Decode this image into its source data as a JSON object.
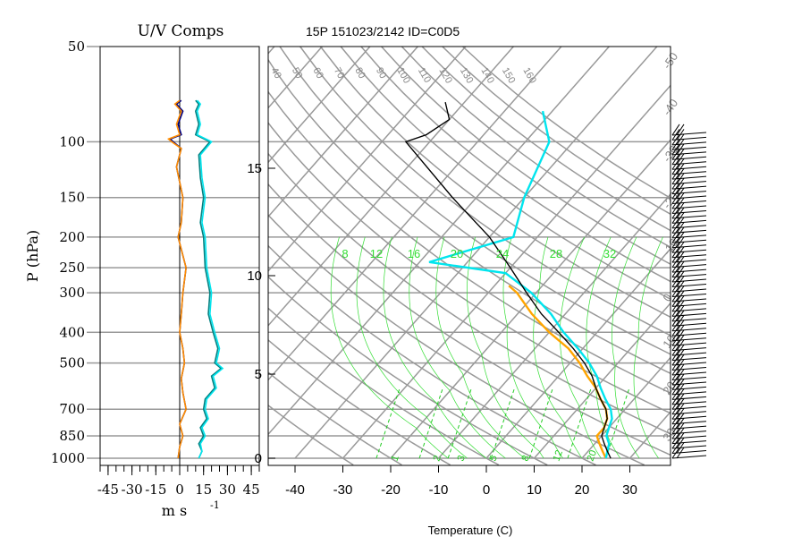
{
  "chart_data": [
    {
      "type": "line",
      "panel": "uv-components",
      "title": "U/V Comps",
      "xlabel": "m s",
      "xlabel_superscript": "-1",
      "ylabel": "P (hPa)",
      "xlim": [
        -50,
        50
      ],
      "ylim": [
        1000,
        50
      ],
      "y_scale": "log",
      "x_ticks": [
        "-45",
        "-30",
        "-15",
        "0",
        "15",
        "30",
        "45"
      ],
      "y_ticks": [
        50,
        100,
        150,
        200,
        250,
        300,
        400,
        500,
        700,
        850,
        1000
      ],
      "grid": true,
      "legend": "none",
      "zero_line": 0,
      "series": [
        {
          "color": "#000080",
          "values": [
            [
              -3,
              50
            ],
            [
              -1,
              1000
            ],
            [
              0,
              920
            ],
            [
              2,
              850
            ],
            [
              0,
              780
            ],
            [
              4,
              700
            ],
            [
              2,
              620
            ],
            [
              1,
              560
            ],
            [
              3,
              500
            ],
            [
              2,
              450
            ],
            [
              0,
              400
            ],
            [
              1,
              350
            ],
            [
              2,
              300
            ],
            [
              4,
              250
            ],
            [
              -1,
              200
            ],
            [
              1,
              180
            ],
            [
              2,
              150
            ],
            [
              -2,
              120
            ],
            [
              1,
              105
            ],
            [
              -4,
              100
            ],
            [
              -6,
              98
            ],
            [
              1,
              95
            ],
            [
              -1,
              88
            ],
            [
              2,
              80
            ],
            [
              -2,
              76
            ],
            [
              1,
              74
            ]
          ]
        },
        {
          "color": "#ff8c00",
          "values": [
            [
              -3,
              50
            ],
            [
              -1,
              1000
            ],
            [
              0,
              920
            ],
            [
              2,
              850
            ],
            [
              0,
              780
            ],
            [
              4,
              700
            ],
            [
              2,
              620
            ],
            [
              1,
              560
            ],
            [
              3,
              500
            ],
            [
              2,
              450
            ],
            [
              0,
              400
            ],
            [
              1,
              350
            ],
            [
              2,
              300
            ],
            [
              4,
              250
            ],
            [
              -1,
              200
            ],
            [
              1,
              180
            ],
            [
              2,
              150
            ],
            [
              -2,
              120
            ],
            [
              1,
              105
            ],
            [
              -5,
              100
            ],
            [
              -7,
              98
            ],
            [
              0,
              95
            ],
            [
              -2,
              88
            ],
            [
              1,
              80
            ],
            [
              -3,
              76
            ],
            [
              0,
              74
            ]
          ]
        },
        {
          "color": "#008080",
          "values": [
            [
              12,
              1000
            ],
            [
              14,
              950
            ],
            [
              12,
              900
            ],
            [
              15,
              850
            ],
            [
              13,
              800
            ],
            [
              17,
              750
            ],
            [
              15,
              700
            ],
            [
              16,
              650
            ],
            [
              22,
              600
            ],
            [
              20,
              550
            ],
            [
              26,
              520
            ],
            [
              22,
              500
            ],
            [
              24,
              450
            ],
            [
              21,
              400
            ],
            [
              18,
              350
            ],
            [
              19,
              300
            ],
            [
              16,
              250
            ],
            [
              15,
              200
            ],
            [
              13,
              180
            ],
            [
              15,
              150
            ],
            [
              13,
              130
            ],
            [
              12,
              110
            ],
            [
              19,
              100
            ],
            [
              10,
              95
            ],
            [
              12,
              88
            ],
            [
              10,
              80
            ],
            [
              12,
              76
            ],
            [
              10,
              74
            ]
          ]
        },
        {
          "color": "#00e5ee",
          "values": [
            [
              12,
              1000
            ],
            [
              14,
              950
            ],
            [
              13,
              900
            ],
            [
              16,
              850
            ],
            [
              14,
              800
            ],
            [
              18,
              750
            ],
            [
              16,
              700
            ],
            [
              17,
              650
            ],
            [
              23,
              600
            ],
            [
              21,
              550
            ],
            [
              27,
              520
            ],
            [
              23,
              500
            ],
            [
              25,
              450
            ],
            [
              22,
              400
            ],
            [
              19,
              350
            ],
            [
              20,
              300
            ],
            [
              17,
              250
            ],
            [
              16,
              200
            ],
            [
              14,
              180
            ],
            [
              16,
              150
            ],
            [
              14,
              130
            ],
            [
              13,
              110
            ],
            [
              20,
              100
            ],
            [
              11,
              95
            ],
            [
              13,
              88
            ],
            [
              11,
              80
            ],
            [
              13,
              76
            ],
            [
              11,
              74
            ]
          ]
        }
      ]
    },
    {
      "type": "line",
      "panel": "skew-t",
      "title": "15P 151023/2142 ID=C0D5",
      "xlabel": "Temperature (C)",
      "ylabel": "",
      "xlim": [
        -45,
        40
      ],
      "x_ticks": [
        "-40",
        "-30",
        "-20",
        "-10",
        "0",
        "10",
        "20",
        "30"
      ],
      "height_ticks_km": [
        "0",
        "5",
        "10",
        "15"
      ],
      "isobars_hpa": [
        1000,
        850,
        700,
        500,
        400,
        300,
        250,
        200,
        150,
        100
      ],
      "dry_adiabat_labels": [
        "40",
        "50",
        "60",
        "70",
        "80",
        "90",
        "100",
        "110",
        "120",
        "130",
        "140",
        "150",
        "160"
      ],
      "right_edge_labels": [
        "-50",
        "-40",
        "-30",
        "-20",
        "-10",
        "0",
        "10",
        "20",
        "30"
      ],
      "moist_adiabat_labels": [
        "8",
        "12",
        "16",
        "20",
        "24",
        "28",
        "32"
      ],
      "mixing_ratio_labels": [
        "1",
        "2",
        "3",
        "5",
        "8",
        "12",
        "20"
      ],
      "grid": true,
      "legend": "none",
      "series": [
        {
          "color": "#ffa500",
          "values": [
            [
              25,
              1000
            ],
            [
              23,
              950
            ],
            [
              21,
              900
            ],
            [
              19,
              850
            ],
            [
              19,
              800
            ],
            [
              18,
              750
            ],
            [
              16,
              700
            ],
            [
              13,
              650
            ],
            [
              10,
              600
            ],
            [
              6,
              550
            ],
            [
              2,
              500
            ],
            [
              -3,
              450
            ],
            [
              -10,
              400
            ],
            [
              -17,
              350
            ],
            [
              -24,
              300
            ],
            [
              -27,
              285
            ]
          ]
        },
        {
          "color": "#00e5ee",
          "values": [
            [
              25,
              1000
            ],
            [
              24,
              950
            ],
            [
              23,
              900
            ],
            [
              21,
              850
            ],
            [
              20,
              800
            ],
            [
              19,
              750
            ],
            [
              17,
              700
            ],
            [
              14,
              650
            ],
            [
              11,
              600
            ],
            [
              8,
              550
            ],
            [
              4,
              500
            ],
            [
              -1,
              450
            ],
            [
              -7,
              400
            ],
            [
              -13,
              350
            ],
            [
              -21,
              300
            ],
            [
              -30,
              260
            ],
            [
              -48,
              240
            ],
            [
              -35,
              200
            ],
            [
              -40,
              150
            ],
            [
              -45,
              100
            ],
            [
              -52,
              80
            ]
          ]
        },
        {
          "color": "#000000",
          "values": [
            [
              26,
              1000
            ],
            [
              24,
              950
            ],
            [
              22,
              900
            ],
            [
              20,
              850
            ],
            [
              19,
              800
            ],
            [
              18,
              750
            ],
            [
              16,
              700
            ],
            [
              13,
              650
            ],
            [
              10,
              600
            ],
            [
              7,
              550
            ],
            [
              3,
              500
            ],
            [
              -2,
              450
            ],
            [
              -8,
              400
            ],
            [
              -15,
              350
            ],
            [
              -22,
              300
            ],
            [
              -30,
              250
            ],
            [
              -40,
              200
            ],
            [
              -55,
              150
            ],
            [
              -75,
              100
            ],
            [
              -72,
              95
            ],
            [
              -70,
              85
            ],
            [
              -74,
              75
            ]
          ]
        },
        {
          "color": "#000000",
          "values": [
            [
              26,
              1000
            ],
            [
              24,
              950
            ],
            [
              22,
              900
            ],
            [
              20,
              850
            ],
            [
              19,
              800
            ],
            [
              18,
              750
            ],
            [
              16,
              700
            ],
            [
              13,
              650
            ],
            [
              10,
              600
            ],
            [
              7,
              550
            ],
            [
              3,
              500
            ],
            [
              -2,
              450
            ],
            [
              -8,
              400
            ],
            [
              -15,
              350
            ],
            [
              -22,
              300
            ],
            [
              -30,
              250
            ],
            [
              -40,
              200
            ],
            [
              -55,
              150
            ],
            [
              -75,
              100
            ],
            [
              -72,
              95
            ],
            [
              -70,
              85
            ],
            [
              -74,
              75
            ]
          ]
        }
      ],
      "wind_barbs": "right-edge"
    }
  ]
}
